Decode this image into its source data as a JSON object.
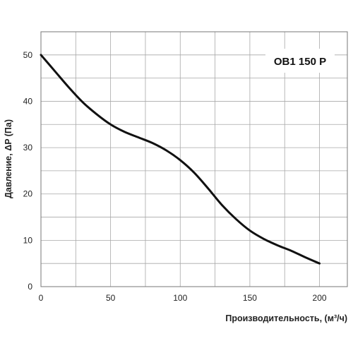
{
  "chart_data": {
    "type": "line",
    "xlabel": "Производительность, (м³/ч)",
    "ylabel": "Давление, ΔP (Па)",
    "xlim": [
      0,
      220
    ],
    "ylim": [
      0,
      55
    ],
    "xticks": [
      0,
      50,
      100,
      150,
      200
    ],
    "yticks": [
      0,
      10,
      20,
      30,
      40,
      50
    ],
    "x_gridlines": [
      0,
      25,
      50,
      75,
      100,
      125,
      150,
      175,
      200,
      220
    ],
    "y_gridlines": [
      0,
      5,
      10,
      15,
      20,
      25,
      30,
      35,
      40,
      45,
      50,
      55
    ],
    "grid": true,
    "legend_position": "top-right",
    "series": [
      {
        "name": "ОВ1 150 Р",
        "color": "#111111",
        "x": [
          0,
          10,
          20,
          30,
          40,
          50,
          60,
          70,
          80,
          90,
          100,
          110,
          120,
          130,
          140,
          150,
          160,
          170,
          180,
          190,
          200
        ],
        "y": [
          50,
          46.5,
          43,
          39.8,
          37.2,
          35,
          33.4,
          32.2,
          31,
          29.4,
          27.3,
          24.6,
          21.2,
          17.6,
          14.6,
          12.1,
          10.3,
          8.9,
          7.7,
          6.3,
          5
        ]
      }
    ]
  }
}
